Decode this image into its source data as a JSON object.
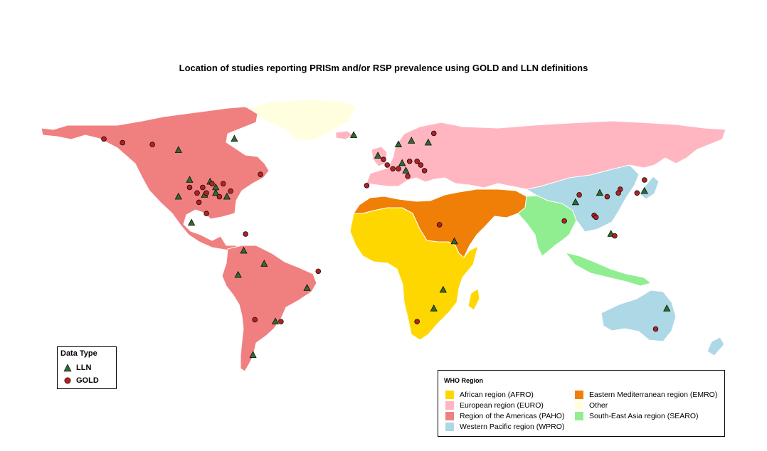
{
  "title": "Location of studies reporting PRISm and/or RSP prevalence using GOLD and LLN definitions",
  "colors": {
    "afro": "#FFD700",
    "euro": "#FFB6C1",
    "paho": "#F08080",
    "wpro": "#ADD8E6",
    "emro": "#F07F08",
    "other": "#FFFFE0",
    "searo": "#90EE90",
    "lln": "#2E6B2E",
    "gold": "#B22222"
  },
  "data_type_legend": {
    "title": "Data Type",
    "items": [
      {
        "label": "LLN",
        "symbol": "triangle"
      },
      {
        "label": "GOLD",
        "symbol": "circle"
      }
    ]
  },
  "region_legend": {
    "title": "WHO Region",
    "items": [
      {
        "label": "African region (AFRO)",
        "key": "afro"
      },
      {
        "label": "European region (EURO)",
        "key": "euro"
      },
      {
        "label": "Region of the Americas (PAHO)",
        "key": "paho"
      },
      {
        "label": "Western Pacific region (WPRO)",
        "key": "wpro"
      },
      {
        "label": "Eastern Mediterranean region (EMRO)",
        "key": "emro"
      },
      {
        "label": "Other",
        "key": "other"
      },
      {
        "label": "South-East Asia region (SEARO)",
        "key": "searo"
      }
    ]
  },
  "chart_data": {
    "type": "scatter",
    "title": "Location of studies reporting PRISm and/or RSP prevalence using GOLD and LLN definitions",
    "series": [
      {
        "name": "LLN",
        "points": [
          {
            "lon": -110,
            "lat": 58
          },
          {
            "lon": -80,
            "lat": 64
          },
          {
            "lon": -104,
            "lat": 42
          },
          {
            "lon": -93,
            "lat": 41
          },
          {
            "lon": -110,
            "lat": 33
          },
          {
            "lon": -96,
            "lat": 34
          },
          {
            "lon": -90,
            "lat": 35
          },
          {
            "lon": -84,
            "lat": 33
          },
          {
            "lon": -90,
            "lat": 38
          },
          {
            "lon": -103,
            "lat": 19
          },
          {
            "lon": -75,
            "lat": 4
          },
          {
            "lon": -64,
            "lat": -3
          },
          {
            "lon": -78,
            "lat": -9
          },
          {
            "lon": -41,
            "lat": -16
          },
          {
            "lon": -58,
            "lat": -34
          },
          {
            "lon": -70,
            "lat": -52
          },
          {
            "lon": -16,
            "lat": 66
          },
          {
            "lon": -3,
            "lat": 55
          },
          {
            "lon": 8,
            "lat": 61
          },
          {
            "lon": 15,
            "lat": 63
          },
          {
            "lon": 24,
            "lat": 62
          },
          {
            "lon": 10,
            "lat": 51
          },
          {
            "lon": 12,
            "lat": 47
          },
          {
            "lon": 38,
            "lat": 9
          },
          {
            "lon": 32,
            "lat": -17
          },
          {
            "lon": 27,
            "lat": -27
          },
          {
            "lon": 103,
            "lat": 30
          },
          {
            "lon": 116,
            "lat": 35
          },
          {
            "lon": 140,
            "lat": 36
          },
          {
            "lon": 122,
            "lat": 13
          },
          {
            "lon": 152,
            "lat": -27
          }
        ]
      },
      {
        "name": "GOLD",
        "points": [
          {
            "lon": -150,
            "lat": 64
          },
          {
            "lon": -140,
            "lat": 62
          },
          {
            "lon": -124,
            "lat": 61
          },
          {
            "lon": -66,
            "lat": 45
          },
          {
            "lon": -104,
            "lat": 38
          },
          {
            "lon": -97,
            "lat": 38
          },
          {
            "lon": -92,
            "lat": 40
          },
          {
            "lon": -86,
            "lat": 40
          },
          {
            "lon": -100,
            "lat": 35
          },
          {
            "lon": -95,
            "lat": 35
          },
          {
            "lon": -88,
            "lat": 33
          },
          {
            "lon": -82,
            "lat": 36
          },
          {
            "lon": -99,
            "lat": 30
          },
          {
            "lon": -95,
            "lat": 24
          },
          {
            "lon": -74,
            "lat": 13
          },
          {
            "lon": -35,
            "lat": -7
          },
          {
            "lon": -55,
            "lat": -34
          },
          {
            "lon": -69,
            "lat": -33
          },
          {
            "lon": -9,
            "lat": 39
          },
          {
            "lon": 0,
            "lat": 53
          },
          {
            "lon": 2,
            "lat": 50
          },
          {
            "lon": 5,
            "lat": 48
          },
          {
            "lon": 8,
            "lat": 48
          },
          {
            "lon": 14,
            "lat": 52
          },
          {
            "lon": 18,
            "lat": 52
          },
          {
            "lon": 20,
            "lat": 50
          },
          {
            "lon": 22,
            "lat": 47
          },
          {
            "lon": 13,
            "lat": 44
          },
          {
            "lon": 27,
            "lat": 67
          },
          {
            "lon": 30,
            "lat": 18
          },
          {
            "lon": 18,
            "lat": -34
          },
          {
            "lon": 105,
            "lat": 34
          },
          {
            "lon": 120,
            "lat": 33
          },
          {
            "lon": 127,
            "lat": 37
          },
          {
            "lon": 126,
            "lat": 35
          },
          {
            "lon": 140,
            "lat": 42
          },
          {
            "lon": 136,
            "lat": 35
          },
          {
            "lon": 113,
            "lat": 23
          },
          {
            "lon": 114,
            "lat": 22
          },
          {
            "lon": 97,
            "lat": 20
          },
          {
            "lon": 124,
            "lat": 12
          },
          {
            "lon": 146,
            "lat": -38
          }
        ]
      }
    ]
  }
}
